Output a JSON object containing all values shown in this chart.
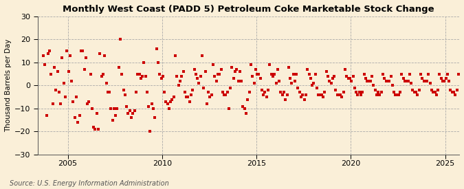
{
  "title": "Monthly West Coast (PADD 5) Petroleum Coke Marketable Stock Change",
  "ylabel": "Thousand Barrels per Day",
  "source": "Source: U.S. Energy Information Administration",
  "background_color": "#faefd8",
  "marker_color": "#cc0000",
  "marker": "s",
  "marker_size": 3.5,
  "ylim": [
    -30,
    30
  ],
  "yticks": [
    -30,
    -20,
    -10,
    0,
    10,
    20,
    30
  ],
  "xlim_right": "2025-10-01",
  "values": [
    13,
    9,
    -13,
    14,
    15,
    5,
    -8,
    8,
    -2,
    6,
    -3,
    -8,
    12,
    1,
    -5,
    15,
    6,
    13,
    2,
    -7,
    -14,
    -5,
    -16,
    -13,
    15,
    15,
    7,
    12,
    -8,
    -7,
    5,
    -10,
    -18,
    -19,
    -12,
    -19,
    14,
    4,
    5,
    13,
    1,
    -3,
    -3,
    -10,
    -15,
    -10,
    -13,
    -10,
    8,
    20,
    5,
    -2,
    -4,
    -9,
    -12,
    -11,
    -14,
    -12,
    -11,
    -3,
    5,
    5,
    3,
    4,
    10,
    4,
    -3,
    -9,
    -20,
    -8,
    -10,
    -14,
    16,
    10,
    5,
    3,
    4,
    -3,
    -7,
    -8,
    -10,
    -7,
    -6,
    -5,
    13,
    4,
    0,
    2,
    4,
    6,
    -3,
    -5,
    -5,
    -7,
    -4,
    -2,
    7,
    5,
    3,
    1,
    4,
    13,
    -1,
    6,
    -8,
    -3,
    -5,
    -4,
    9,
    4,
    2,
    5,
    5,
    7,
    -3,
    -4,
    -4,
    -3,
    -10,
    -1,
    8,
    3,
    6,
    7,
    2,
    6,
    2,
    -9,
    -10,
    -12,
    -6,
    -3,
    9,
    4,
    1,
    7,
    5,
    5,
    3,
    -2,
    -4,
    -3,
    -5,
    -2,
    9,
    5,
    4,
    5,
    1,
    7,
    2,
    -3,
    -4,
    -3,
    -6,
    -4,
    8,
    3,
    1,
    5,
    2,
    5,
    -1,
    -3,
    -5,
    -4,
    -6,
    -4,
    7,
    5,
    3,
    0,
    1,
    5,
    -1,
    -4,
    -4,
    -4,
    -5,
    -3,
    6,
    4,
    2,
    1,
    3,
    4,
    -2,
    -4,
    -4,
    -4,
    -5,
    -3,
    7,
    4,
    3,
    3,
    2,
    4,
    -1,
    -3,
    -4,
    -3,
    -4,
    -3,
    5,
    3,
    2,
    2,
    2,
    4,
    0,
    -2,
    -4,
    -3,
    -4,
    -3,
    5,
    3,
    2,
    2,
    2,
    4,
    0,
    -3,
    -4,
    -4,
    -4,
    -3,
    5,
    3,
    2,
    2,
    2,
    5,
    1,
    -2,
    -3,
    -3,
    -4,
    -2,
    5,
    3,
    2,
    2,
    2,
    5,
    1,
    -2,
    -3,
    -3,
    -4,
    -2,
    5,
    3,
    2,
    2,
    3,
    5,
    2,
    -2,
    -3,
    -3,
    -4,
    -2,
    5
  ],
  "start_year": 2003,
  "start_month": 9
}
